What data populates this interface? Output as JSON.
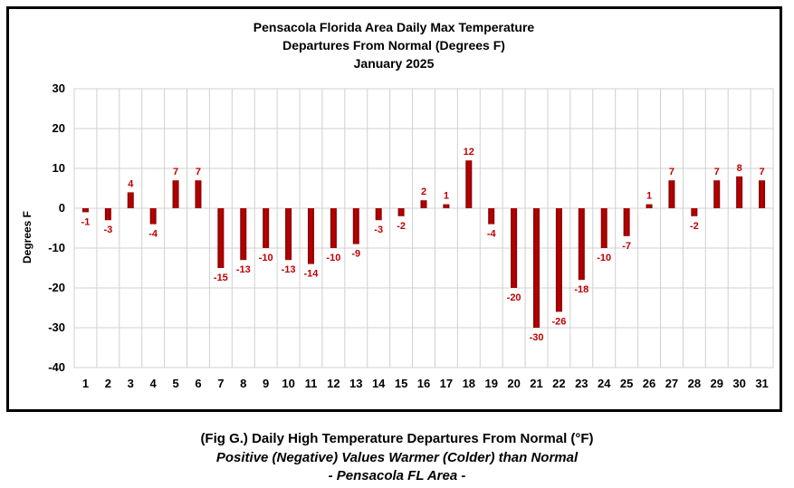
{
  "chart_data": {
    "type": "bar",
    "title_lines": [
      "Pensacola Florida Area Daily Max Temperature",
      "Departures From Normal (Degrees F)",
      "January 2025"
    ],
    "xlabel": "",
    "ylabel": "Degrees F",
    "ylim": [
      -40,
      30
    ],
    "yticks": [
      30,
      20,
      10,
      0,
      -10,
      -20,
      -30,
      -40
    ],
    "grid": true,
    "legend": "none",
    "bar_color": "#c00000",
    "label_color": "#c00000",
    "categories": [
      "1",
      "2",
      "3",
      "4",
      "5",
      "6",
      "7",
      "8",
      "9",
      "10",
      "11",
      "12",
      "13",
      "14",
      "15",
      "16",
      "17",
      "18",
      "19",
      "20",
      "21",
      "22",
      "23",
      "24",
      "25",
      "26",
      "27",
      "28",
      "29",
      "30",
      "31"
    ],
    "values": [
      -1,
      -3,
      4,
      -4,
      7,
      7,
      -15,
      -13,
      -10,
      -13,
      -14,
      -10,
      -9,
      -3,
      -2,
      2,
      1,
      12,
      -4,
      -20,
      -30,
      -26,
      -18,
      -10,
      -7,
      1,
      7,
      -2,
      7,
      8,
      7
    ]
  },
  "caption": {
    "line1": "(Fig G.) Daily High Temperature Departures From Normal (°F)",
    "line2": "Positive (Negative) Values Warmer (Colder) than Normal",
    "line3": "- Pensacola FL Area -"
  }
}
